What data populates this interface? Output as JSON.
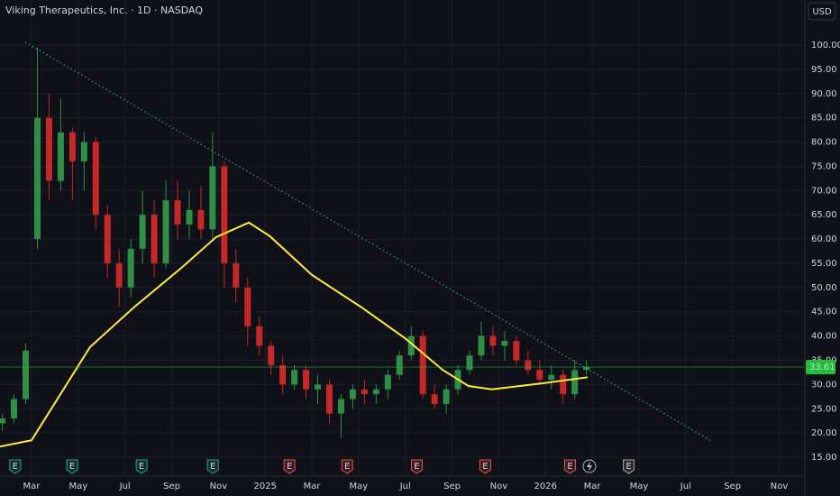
{
  "chart_data": {
    "type": "candlestick",
    "title": "Viking Therapeutics, Inc. · 1D · NASDAQ",
    "currency": "USD",
    "xlim": [
      0.65,
      35.1
    ],
    "ylim": [
      11.1,
      109.3
    ],
    "grid": true,
    "up_color": "#2f8f46",
    "down_color": "#c62828",
    "xticks": [
      {
        "value": 2,
        "label": "Mar"
      },
      {
        "value": 4,
        "label": "May"
      },
      {
        "value": 6,
        "label": "Jul"
      },
      {
        "value": 8,
        "label": "Sep"
      },
      {
        "value": 10,
        "label": "Nov"
      },
      {
        "value": 12,
        "label": "2025"
      },
      {
        "value": 14,
        "label": "Mar"
      },
      {
        "value": 16,
        "label": "May"
      },
      {
        "value": 18,
        "label": "Jul"
      },
      {
        "value": 20,
        "label": "Sep"
      },
      {
        "value": 22,
        "label": "Nov"
      },
      {
        "value": 24,
        "label": "2026"
      },
      {
        "value": 26,
        "label": "Mar"
      },
      {
        "value": 28,
        "label": "May"
      },
      {
        "value": 30,
        "label": "Jul"
      },
      {
        "value": 32,
        "label": "Sep"
      },
      {
        "value": 34,
        "label": "Nov"
      }
    ],
    "yticks": [
      {
        "value": 15,
        "label": "15.00"
      },
      {
        "value": 20,
        "label": "20.00"
      },
      {
        "value": 25,
        "label": "25.00"
      },
      {
        "value": 30,
        "label": "30.00"
      },
      {
        "value": 35,
        "label": "35.00"
      },
      {
        "value": 40,
        "label": "40.00"
      },
      {
        "value": 45,
        "label": "45.00"
      },
      {
        "value": 50,
        "label": "50.00"
      },
      {
        "value": 55,
        "label": "55.00"
      },
      {
        "value": 60,
        "label": "60.00"
      },
      {
        "value": 65,
        "label": "65.00"
      },
      {
        "value": 70,
        "label": "70.00"
      },
      {
        "value": 75,
        "label": "75.00"
      },
      {
        "value": 80,
        "label": "80.00"
      },
      {
        "value": 85,
        "label": "85.00"
      },
      {
        "value": 90,
        "label": "90.00"
      },
      {
        "value": 95,
        "label": "95.00"
      },
      {
        "value": 100,
        "label": "100.00"
      }
    ],
    "x": [
      0.75,
      1.25,
      1.75,
      2.25,
      2.75,
      3.25,
      3.75,
      4.25,
      4.75,
      5.25,
      5.75,
      6.25,
      6.75,
      7.25,
      7.75,
      8.25,
      8.75,
      9.25,
      9.75,
      10.25,
      10.75,
      11.25,
      11.75,
      12.25,
      12.75,
      13.25,
      13.75,
      14.25,
      14.75,
      15.25,
      15.75,
      16.25,
      16.75,
      17.25,
      17.75,
      18.25,
      18.75,
      19.25,
      19.75,
      20.25,
      20.75,
      21.25,
      21.75,
      22.25,
      22.75,
      23.25,
      23.75,
      24.25,
      24.75,
      25.25,
      25.75
    ],
    "open": [
      22,
      23,
      27,
      60,
      85,
      72,
      82,
      76,
      80,
      65,
      55,
      50,
      58,
      65,
      55,
      68,
      63,
      66,
      62,
      75,
      55,
      50,
      42,
      38,
      34,
      30,
      33,
      29,
      30,
      24,
      27,
      29,
      28,
      29,
      32,
      36,
      40,
      28,
      26,
      29,
      33,
      36,
      40,
      38,
      39,
      35,
      33,
      31,
      32,
      28,
      33
    ],
    "high": [
      24,
      28,
      38.5,
      99.4,
      90,
      89,
      83,
      82,
      81,
      67,
      58,
      60,
      70,
      68,
      72,
      72,
      70,
      71,
      82,
      76,
      58,
      52,
      44,
      39,
      36,
      34,
      34,
      32,
      31,
      28,
      30,
      31,
      30,
      33,
      37,
      42,
      41,
      30,
      30,
      34,
      37,
      43,
      42,
      41,
      40,
      37,
      35,
      34,
      33,
      35,
      35
    ],
    "low": [
      20.5,
      22,
      26,
      58,
      68,
      70,
      68,
      70,
      62,
      52,
      46,
      48,
      55,
      52,
      54,
      60,
      60,
      60,
      60,
      50,
      47,
      38,
      36,
      32,
      28,
      29,
      27,
      26,
      22,
      19,
      25,
      26,
      26,
      27,
      31,
      35,
      27,
      25,
      24,
      28,
      32,
      35,
      36,
      35,
      34,
      32,
      30,
      29,
      26,
      27,
      32
    ],
    "close": [
      23,
      27,
      37,
      85,
      72,
      82,
      76,
      80,
      65,
      55,
      50,
      58,
      65,
      55,
      68,
      63,
      66,
      62,
      75,
      55,
      50,
      42,
      38,
      34,
      30,
      33,
      29,
      30,
      24,
      27,
      29,
      28,
      29,
      32,
      36,
      40,
      28,
      26,
      29,
      33,
      36,
      40,
      38,
      39,
      35,
      33,
      31,
      32,
      28,
      33,
      33.61
    ],
    "moving_average": {
      "color": "#ffeb3b",
      "x": [
        0.65,
        2,
        4.5,
        6.4,
        8.4,
        9.9,
        11.3,
        12.2,
        14,
        16.1,
        18,
        19.6,
        20.7,
        21.7,
        23.8,
        25.8
      ],
      "values": [
        17.2,
        18.5,
        37.7,
        46,
        54,
        60.4,
        63.4,
        60.6,
        52.6,
        46,
        39.5,
        33,
        29.7,
        29,
        30.2,
        31.5
      ]
    },
    "trendline": {
      "color": "#26a69a",
      "x": [
        1.73,
        31.15
      ],
      "values": [
        100.6,
        18.2
      ]
    },
    "last_price": 33.61,
    "last_price_color": "#1fbf3a",
    "events": {
      "x": [
        1.3,
        3.74,
        6.71,
        9.76,
        13.04,
        15.51,
        18.49,
        21.42,
        25.05,
        27.56
      ],
      "labels": [
        "E",
        "E",
        "E",
        "E",
        "E",
        "E",
        "E",
        "E",
        "E",
        "E"
      ],
      "colors": [
        "#26a69a",
        "#26a69a",
        "#26a69a",
        "#26a69a",
        "#ef5350",
        "#ef5350",
        "#ef5350",
        "#ef5350",
        "#ef5350",
        "#b0a89a"
      ]
    }
  }
}
